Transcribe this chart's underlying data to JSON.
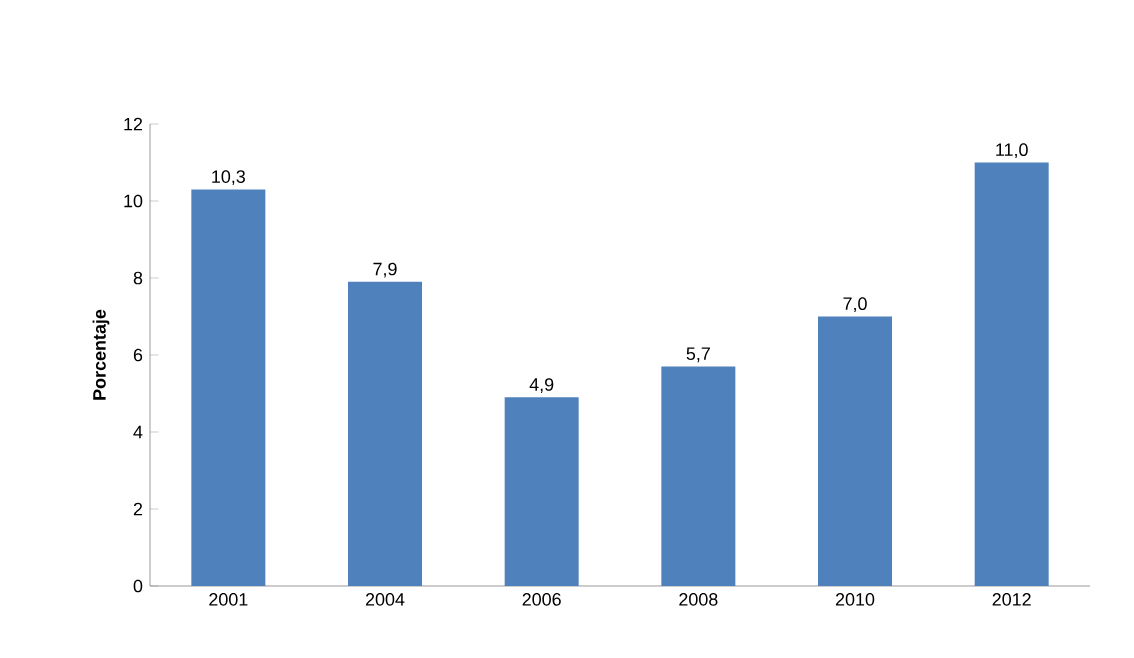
{
  "chart_data": {
    "type": "bar",
    "ylabel": "Porcentaje",
    "categories": [
      "2001",
      "2004",
      "2006",
      "2008",
      "2010",
      "2012"
    ],
    "values": [
      10.3,
      7.9,
      4.9,
      5.7,
      7.0,
      11.0
    ],
    "value_labels": [
      "10,3",
      "7,9",
      "4,9",
      "5,7",
      "7,0",
      "11,0"
    ],
    "color": "#4f81bd",
    "ylim": [
      0,
      12
    ],
    "yticks": [
      0,
      2,
      4,
      6,
      8,
      10,
      12
    ],
    "grid": false
  }
}
